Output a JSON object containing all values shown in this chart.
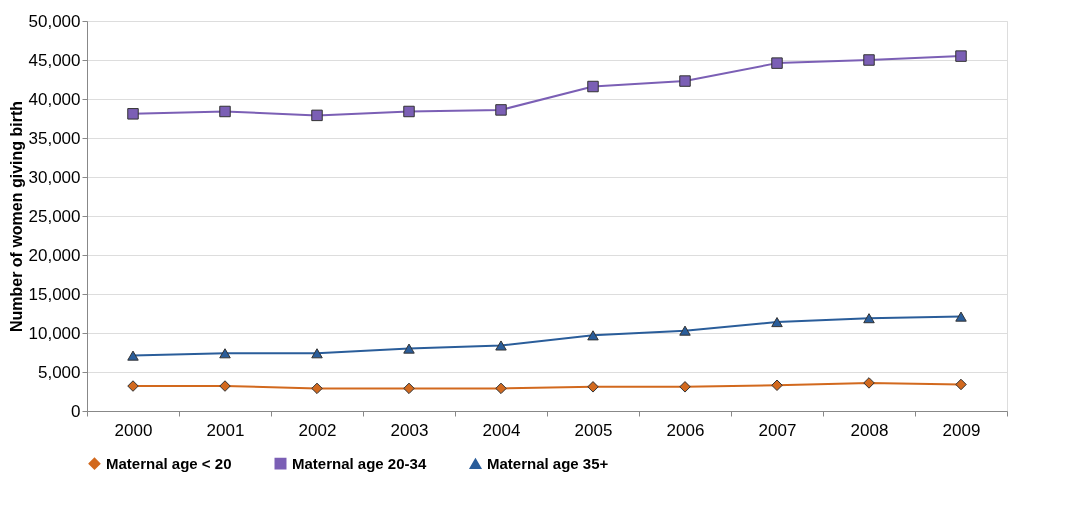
{
  "chart_data": {
    "type": "line",
    "ylabel": "Number of women giving birth",
    "categories": [
      "2000",
      "2001",
      "2002",
      "2003",
      "2004",
      "2005",
      "2006",
      "2007",
      "2008",
      "2009"
    ],
    "series": [
      {
        "name": "Maternal age < 20",
        "color": "#d2691e",
        "marker": "diamond",
        "values": [
          3200,
          3200,
          2900,
          2900,
          2900,
          3100,
          3100,
          3300,
          3600,
          3400
        ]
      },
      {
        "name": "Maternal age 20-34",
        "color": "#7b5fb5",
        "marker": "square",
        "values": [
          38100,
          38400,
          37900,
          38400,
          38600,
          41600,
          42300,
          44600,
          45000,
          45500
        ]
      },
      {
        "name": "Maternal age 35+",
        "color": "#2a5d9a",
        "marker": "triangle",
        "values": [
          7100,
          7400,
          7400,
          8000,
          8400,
          9700,
          10300,
          11400,
          11900,
          12100
        ]
      }
    ],
    "ylim": [
      0,
      50000
    ],
    "yticks": [
      {
        "value": 0,
        "label": "0"
      },
      {
        "value": 5000,
        "label": "5,000"
      },
      {
        "value": 10000,
        "label": "10,000"
      },
      {
        "value": 15000,
        "label": "15,000"
      },
      {
        "value": 20000,
        "label": "20,000"
      },
      {
        "value": 25000,
        "label": "25,000"
      },
      {
        "value": 30000,
        "label": "30,000"
      },
      {
        "value": 35000,
        "label": "35,000"
      },
      {
        "value": 40000,
        "label": "40,000"
      },
      {
        "value": 45000,
        "label": "45,000"
      },
      {
        "value": 50000,
        "label": "50,000"
      }
    ],
    "grid": "y",
    "legend": "bottom",
    "line_style": "solid"
  }
}
